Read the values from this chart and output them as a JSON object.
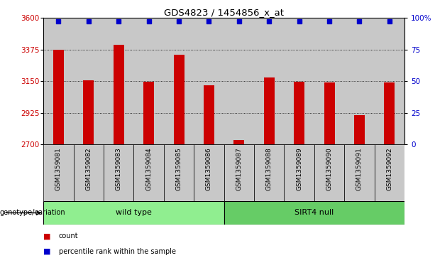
{
  "title": "GDS4823 / 1454856_x_at",
  "samples": [
    "GSM1359081",
    "GSM1359082",
    "GSM1359083",
    "GSM1359084",
    "GSM1359085",
    "GSM1359086",
    "GSM1359087",
    "GSM1359088",
    "GSM1359089",
    "GSM1359090",
    "GSM1359091",
    "GSM1359092"
  ],
  "counts": [
    3375,
    3155,
    3410,
    3145,
    3340,
    3120,
    2730,
    3175,
    3145,
    3140,
    2910,
    3140
  ],
  "groups": [
    {
      "label": "wild type",
      "start": 0,
      "end": 5,
      "color": "#90EE90"
    },
    {
      "label": "SIRT4 null",
      "start": 6,
      "end": 11,
      "color": "#66CC66"
    }
  ],
  "ymin": 2700,
  "ymax": 3600,
  "yticks_left": [
    2700,
    2925,
    3150,
    3375,
    3600
  ],
  "yticks_right": [
    0,
    25,
    50,
    75,
    100
  ],
  "bar_color": "#CC0000",
  "dot_color": "#0000CC",
  "bar_width": 0.35,
  "grid_color": "#000000",
  "xlabel_color": "#CC0000",
  "ylabel_right_color": "#0000CC",
  "legend_count_color": "#CC0000",
  "legend_pct_color": "#0000CC",
  "genotype_label": "genotype/variation",
  "col_bg_color": "#C8C8C8"
}
